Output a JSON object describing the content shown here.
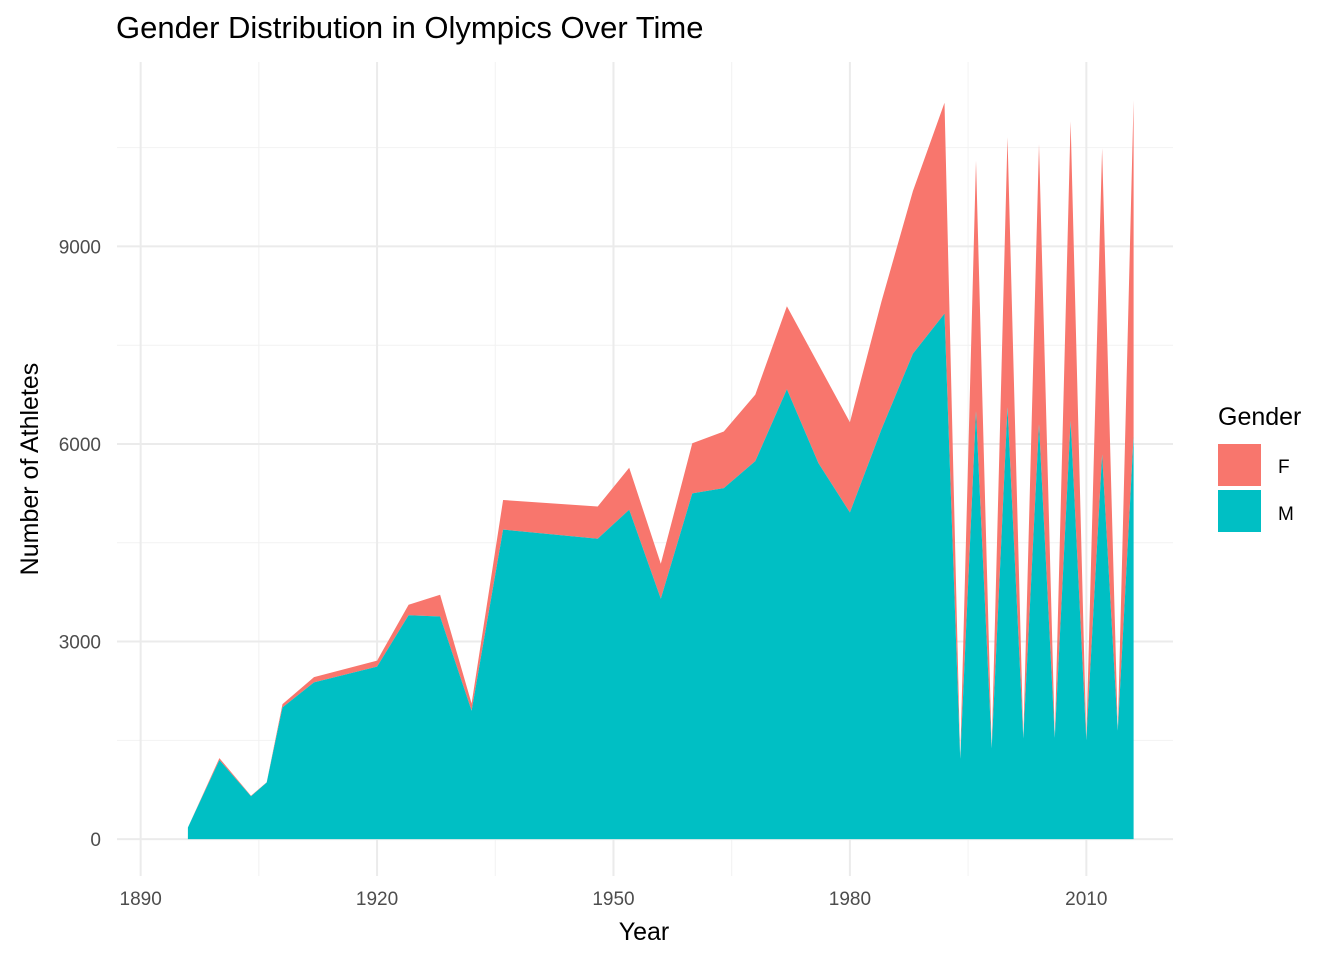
{
  "chart_data": {
    "type": "area",
    "stacked": true,
    "title": "Gender Distribution in Olympics Over Time",
    "xlabel": "Year",
    "ylabel": "Number of Athletes",
    "xlim": [
      1887,
      2021
    ],
    "ylim": [
      -560,
      11800
    ],
    "x_ticks": [
      1890,
      1920,
      1950,
      1980,
      2010
    ],
    "y_ticks": [
      0,
      3000,
      6000,
      9000
    ],
    "grid": true,
    "legend": {
      "title": "Gender",
      "placement": "right",
      "entries": [
        {
          "label": "F",
          "color": "#F8766D"
        },
        {
          "label": "M",
          "color": "#00BFC4"
        }
      ]
    },
    "x": [
      1896,
      1900,
      1904,
      1906,
      1908,
      1912,
      1920,
      1924,
      1928,
      1932,
      1936,
      1948,
      1952,
      1956,
      1960,
      1964,
      1968,
      1972,
      1976,
      1980,
      1984,
      1988,
      1992,
      1994,
      1996,
      1998,
      2000,
      2002,
      2004,
      2006,
      2008,
      2010,
      2012,
      2014,
      2016
    ],
    "series": [
      {
        "name": "M",
        "color": "#00BFC4",
        "values": [
          176,
          1200,
          650,
          860,
          2000,
          2380,
          2620,
          3400,
          3380,
          1950,
          4700,
          4560,
          5000,
          3650,
          5250,
          5330,
          5740,
          6830,
          5710,
          4960,
          6220,
          7370,
          7980,
          1220,
          6500,
          1380,
          6560,
          1530,
          6300,
          1540,
          6350,
          1500,
          5840,
          1650,
          6120
        ]
      },
      {
        "name": "F",
        "color": "#F8766D",
        "values": [
          0,
          30,
          10,
          5,
          50,
          80,
          90,
          160,
          330,
          110,
          450,
          490,
          640,
          530,
          760,
          860,
          1010,
          1260,
          1500,
          1370,
          1940,
          2470,
          3200,
          0,
          3800,
          0,
          4100,
          0,
          4250,
          0,
          4550,
          0,
          4650,
          0,
          5100
        ]
      }
    ]
  }
}
